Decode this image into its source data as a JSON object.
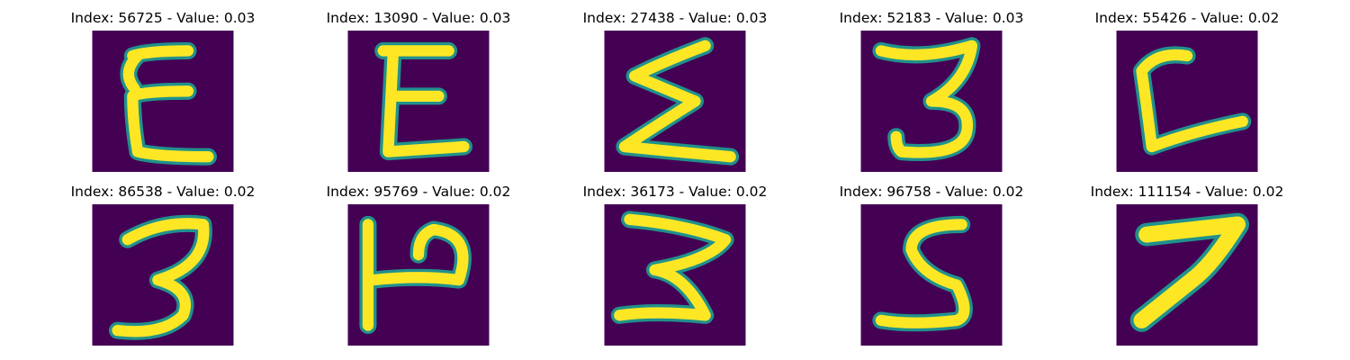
{
  "colors": {
    "background": "#440154",
    "stroke_core": "#fde725",
    "stroke_edge": "#21918c",
    "stroke_mid": "#5ec962"
  },
  "samples": [
    {
      "title": "Index: 56725 - Value: 0.03",
      "glyph": "E (curly)"
    },
    {
      "title": "Index: 13090 - Value: 0.03",
      "glyph": "E"
    },
    {
      "title": "Index: 27438 - Value: 0.03",
      "glyph": "Σ"
    },
    {
      "title": "Index: 52183 - Value: 0.03",
      "glyph": "3"
    },
    {
      "title": "Index: 55426 - Value: 0.02",
      "glyph": "L"
    },
    {
      "title": "Index: 86538 - Value: 0.02",
      "glyph": "3"
    },
    {
      "title": "Index: 95769 - Value: 0.02",
      "glyph": "P"
    },
    {
      "title": "Index: 36173 - Value: 0.02",
      "glyph": "3"
    },
    {
      "title": "Index: 96758 - Value: 0.02",
      "glyph": "S"
    },
    {
      "title": "Index: 111154 - Value: 0.02",
      "glyph": "7"
    }
  ]
}
